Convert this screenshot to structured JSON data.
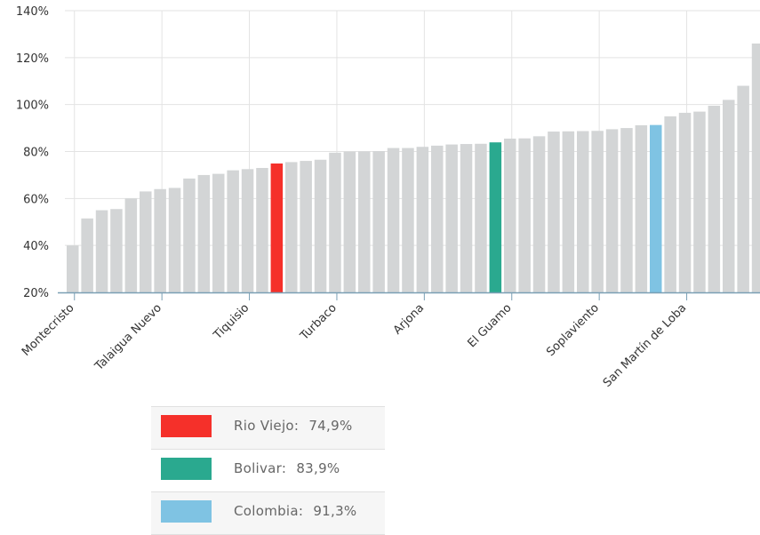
{
  "chart_data": {
    "type": "bar",
    "ylim": [
      20,
      140
    ],
    "yticks": [
      "20%",
      "40%",
      "60%",
      "80%",
      "100%",
      "120%",
      "140%"
    ],
    "ytick_values": [
      20,
      40,
      60,
      80,
      100,
      120,
      140
    ],
    "grid": true,
    "values": [
      40,
      51.5,
      55,
      55.5,
      60,
      63,
      64,
      64.5,
      68.5,
      70,
      70.5,
      72,
      72.5,
      73,
      74.9,
      75.5,
      76,
      76.5,
      79.5,
      80,
      80.1,
      80.2,
      81.5,
      81.5,
      82,
      82.5,
      83,
      83.2,
      83.3,
      83.9,
      85.5,
      85.6,
      86.5,
      88.5,
      88.6,
      88.7,
      88.8,
      89.5,
      90,
      91.2,
      91.3,
      95,
      96.5,
      97,
      99.5,
      102,
      108,
      126
    ],
    "x_labels": [
      {
        "label": "Montecristo",
        "index": 0
      },
      {
        "label": "Talaigua Nuevo",
        "index": 6
      },
      {
        "label": "Tiquisio",
        "index": 12
      },
      {
        "label": "Turbaco",
        "index": 18
      },
      {
        "label": "Arjona",
        "index": 24
      },
      {
        "label": "El Guamo",
        "index": 30
      },
      {
        "label": "Soplaviento",
        "index": 36
      },
      {
        "label": "San Martín de Loba",
        "index": 42
      }
    ],
    "highlights": [
      {
        "index": 14,
        "key": "rio_viejo"
      },
      {
        "index": 29,
        "key": "bolivar"
      },
      {
        "index": 40,
        "key": "colombia"
      }
    ]
  },
  "colors": {
    "bar_default": "#d3d5d6",
    "rio_viejo": "#f5302a",
    "bolivar": "#2aa98f",
    "colombia": "#7fc3e3",
    "grid": "#e3e3e3",
    "axis": "#7a9fb4"
  },
  "legend": [
    {
      "key": "rio_viejo",
      "name": "Rio Viejo:",
      "value": "74,9%"
    },
    {
      "key": "bolivar",
      "name": "Bolivar:",
      "value": "83,9%"
    },
    {
      "key": "colombia",
      "name": "Colombia:",
      "value": "91,3%"
    }
  ]
}
